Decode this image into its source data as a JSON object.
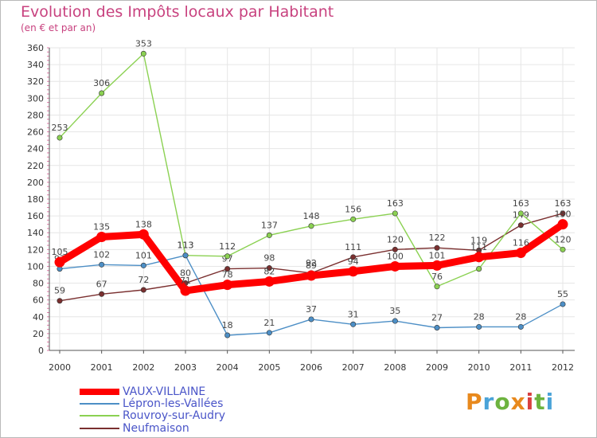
{
  "header": {
    "title": "Evolution des Impôts locaux par Habitant",
    "subtitle": "(en € et par an)"
  },
  "logo": {
    "text": "Proxiti",
    "colors": [
      "#e8891d",
      "#4aa3d8",
      "#6db33f",
      "#e8891d",
      "#d94040",
      "#6db33f",
      "#4aa3d8"
    ]
  },
  "chart_data": {
    "type": "line",
    "title": "Evolution des Impôts locaux par Habitant",
    "subtitle": "(en € et par an)",
    "xlabel": "",
    "ylabel": "",
    "x": [
      "2000",
      "2001",
      "2002",
      "2003",
      "2004",
      "2005",
      "2006",
      "2007",
      "2008",
      "2009",
      "2010",
      "2011",
      "2012"
    ],
    "ylim": [
      0,
      360
    ],
    "yticks": [
      0,
      20,
      40,
      60,
      80,
      100,
      120,
      140,
      160,
      180,
      200,
      220,
      240,
      260,
      280,
      300,
      320,
      340,
      360
    ],
    "grid": true,
    "legend_position": "bottom-left",
    "series": [
      {
        "name": "Neufmaison",
        "color": "#7a2f2f",
        "values": [
          59,
          67,
          72,
          80,
          97,
          98,
          92,
          111,
          120,
          122,
          119,
          149,
          163
        ],
        "labels": [
          "59",
          "67",
          "72",
          "80",
          "97",
          "98",
          "92",
          "111",
          "120",
          "122",
          "119",
          "149",
          "163"
        ]
      },
      {
        "name": "Rouvroy-sur-Audry",
        "color": "#8bd152",
        "values": [
          253,
          306,
          353,
          113,
          112,
          137,
          148,
          156,
          163,
          76,
          97,
          163,
          120
        ],
        "labels": [
          "253",
          "306",
          "353",
          "113",
          "112",
          "137",
          "148",
          "156",
          "163",
          "76",
          "",
          "163",
          "120"
        ]
      },
      {
        "name": "Lépron-les-Vallées",
        "color": "#4d8fc6",
        "values": [
          97,
          102,
          101,
          113,
          18,
          21,
          37,
          31,
          35,
          27,
          28,
          28,
          55
        ],
        "labels": [
          "97",
          "102",
          "101",
          "113",
          "18",
          "21",
          "37",
          "31",
          "35",
          "27",
          "28",
          "28",
          "55"
        ]
      },
      {
        "name": "VAUX-VILLAINE",
        "color": "#ff0000",
        "values": [
          105,
          135,
          138,
          71,
          78,
          82,
          89,
          94,
          100,
          101,
          111,
          116,
          150
        ],
        "labels": [
          "105",
          "135",
          "138",
          "71",
          "78",
          "82",
          "89",
          "94",
          "100",
          "101",
          "111",
          "116",
          "150"
        ]
      }
    ],
    "legend": [
      "VAUX-VILLAINE",
      "Lépron-les-Vallées",
      "Rouvroy-sur-Audry",
      "Neufmaison"
    ]
  }
}
